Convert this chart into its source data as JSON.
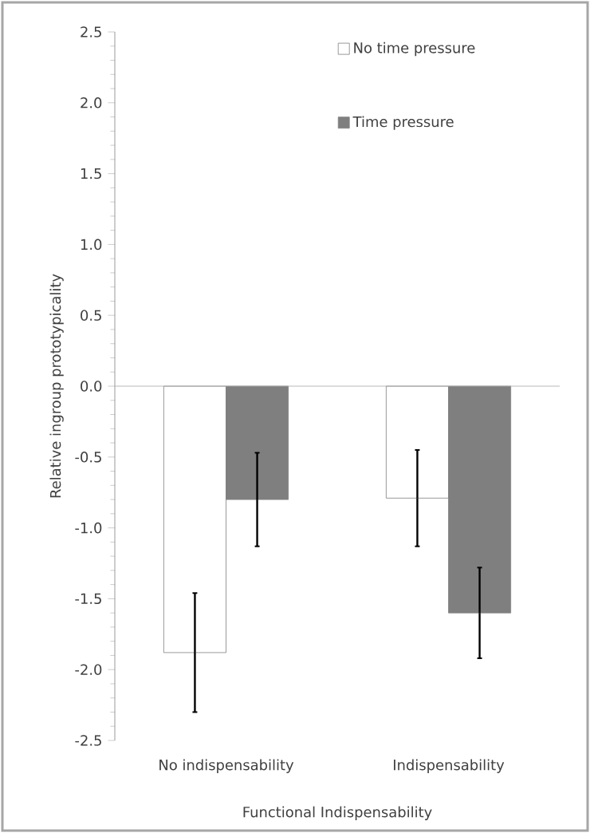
{
  "chart_data": {
    "type": "bar",
    "xlabel": "Functional Indispensability",
    "ylabel": "Relative ingroup prototypicality",
    "categories": [
      "No indispensability",
      "Indispensability"
    ],
    "series": [
      {
        "name": "No time pressure",
        "color": "#ffffff",
        "values": [
          -1.88,
          -0.79
        ],
        "errors": [
          0.42,
          0.34
        ]
      },
      {
        "name": "Time pressure",
        "color": "#7f7f7f",
        "values": [
          -0.8,
          -1.6
        ],
        "errors": [
          0.33,
          0.32
        ]
      }
    ],
    "ylim": [
      -2.5,
      2.5
    ],
    "yticks": [
      {
        "value": -2.5,
        "label": "-2.5"
      },
      {
        "value": -2,
        "label": "-2.0"
      },
      {
        "value": -1.5,
        "label": "-1.5"
      },
      {
        "value": -1,
        "label": "-1.0"
      },
      {
        "value": -0.5,
        "label": "-0.5"
      },
      {
        "value": 0,
        "label": "0.0"
      },
      0.5,
      {
        "value": 1,
        "label": "1.0"
      },
      1.5,
      {
        "value": 2,
        "label": "2.0"
      },
      2.5
    ],
    "ref_lines": [
      {
        "axis": "y",
        "value": 0,
        "color": "#a6a6a6"
      }
    ],
    "legend": "top right"
  }
}
